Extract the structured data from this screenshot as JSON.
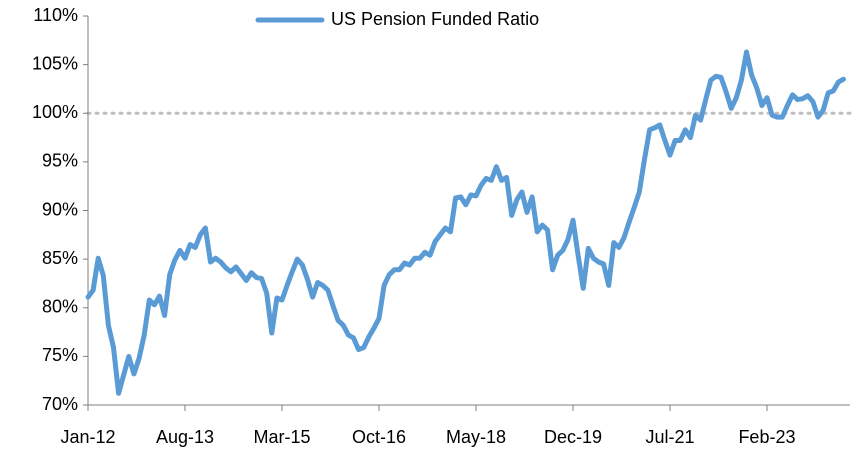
{
  "chart_data": {
    "type": "line",
    "categories": [
      "Jan-12",
      null,
      null,
      null,
      null,
      null,
      null,
      null,
      null,
      null,
      null,
      null,
      null,
      null,
      null,
      null,
      null,
      null,
      null,
      "Aug-13",
      null,
      null,
      null,
      null,
      null,
      null,
      null,
      null,
      null,
      null,
      null,
      null,
      null,
      null,
      null,
      null,
      null,
      null,
      "Mar-15",
      null,
      null,
      null,
      null,
      null,
      null,
      null,
      null,
      null,
      null,
      null,
      null,
      null,
      null,
      null,
      null,
      null,
      null,
      "Oct-16",
      null,
      null,
      null,
      null,
      null,
      null,
      null,
      null,
      null,
      null,
      null,
      null,
      null,
      null,
      null,
      null,
      null,
      null,
      "May-18",
      null,
      null,
      null,
      null,
      null,
      null,
      null,
      null,
      null,
      null,
      null,
      null,
      null,
      null,
      null,
      null,
      null,
      null,
      "Dec-19",
      null,
      null,
      null,
      null,
      null,
      null,
      null,
      null,
      null,
      null,
      null,
      null,
      null,
      null,
      null,
      null,
      null,
      null,
      "Jul-21",
      null,
      null,
      null,
      null,
      null,
      null,
      null,
      null,
      null,
      null,
      null,
      null,
      null,
      null,
      null,
      null,
      null,
      null,
      "Feb-23",
      null,
      null,
      null,
      null,
      null,
      null,
      null,
      null,
      null,
      null,
      null,
      null,
      null,
      null,
      null
    ],
    "series": [
      {
        "name": "US Pension Funded Ratio",
        "color": "#5b9bd5",
        "values": [
          81.1,
          81.8,
          85.1,
          83.3,
          78.2,
          75.9,
          71.2,
          73.1,
          75.0,
          73.2,
          74.8,
          77.2,
          80.8,
          80.3,
          81.2,
          79.2,
          83.4,
          84.9,
          85.9,
          85.1,
          86.5,
          86.2,
          87.5,
          88.2,
          84.7,
          85.1,
          84.7,
          84.1,
          83.7,
          84.2,
          83.5,
          82.8,
          83.6,
          83.1,
          83.0,
          81.5,
          77.4,
          81.0,
          80.8,
          82.3,
          83.7,
          85.0,
          84.4,
          82.9,
          81.1,
          82.6,
          82.3,
          81.8,
          80.2,
          78.7,
          78.2,
          77.2,
          76.9,
          75.7,
          75.9,
          77.0,
          77.9,
          78.9,
          82.3,
          83.4,
          83.9,
          83.9,
          84.6,
          84.4,
          85.1,
          85.1,
          85.7,
          85.4,
          86.8,
          87.5,
          88.2,
          87.8,
          91.3,
          91.4,
          90.6,
          91.6,
          91.5,
          92.6,
          93.3,
          93.1,
          94.5,
          93.1,
          93.4,
          89.5,
          91.1,
          91.9,
          89.8,
          91.4,
          87.8,
          88.5,
          88.0,
          83.9,
          85.4,
          85.9,
          87.0,
          89.0,
          85.4,
          82.0,
          86.1,
          85.1,
          84.7,
          84.5,
          82.3,
          86.7,
          86.2,
          87.2,
          88.8,
          90.3,
          91.9,
          95.2,
          98.3,
          98.5,
          98.8,
          97.2,
          95.7,
          97.2,
          97.2,
          98.3,
          97.5,
          99.8,
          99.3,
          101.4,
          103.4,
          103.8,
          103.7,
          102.2,
          100.5,
          101.6,
          103.4,
          106.3,
          103.9,
          102.6,
          100.8,
          101.6,
          99.8,
          99.6,
          99.6,
          100.8,
          101.9,
          101.4,
          101.5,
          101.8,
          101.2,
          99.6,
          100.3,
          102.1,
          102.3,
          103.2,
          103.5
        ]
      }
    ],
    "ylim": [
      70,
      110
    ],
    "yticks": [
      {
        "value": 70,
        "label": "70%"
      },
      {
        "value": 75,
        "label": "75%"
      },
      {
        "value": 80,
        "label": "80%"
      },
      {
        "value": 85,
        "label": "85%"
      },
      {
        "value": 90,
        "label": "90%"
      },
      {
        "value": 95,
        "label": "95%"
      },
      {
        "value": 100,
        "label": "100%"
      },
      {
        "value": 105,
        "label": "105%"
      },
      {
        "value": 110,
        "label": "110%"
      }
    ],
    "reference_line": {
      "value": 100,
      "color": "#bfbfbf"
    },
    "legend": "top"
  }
}
